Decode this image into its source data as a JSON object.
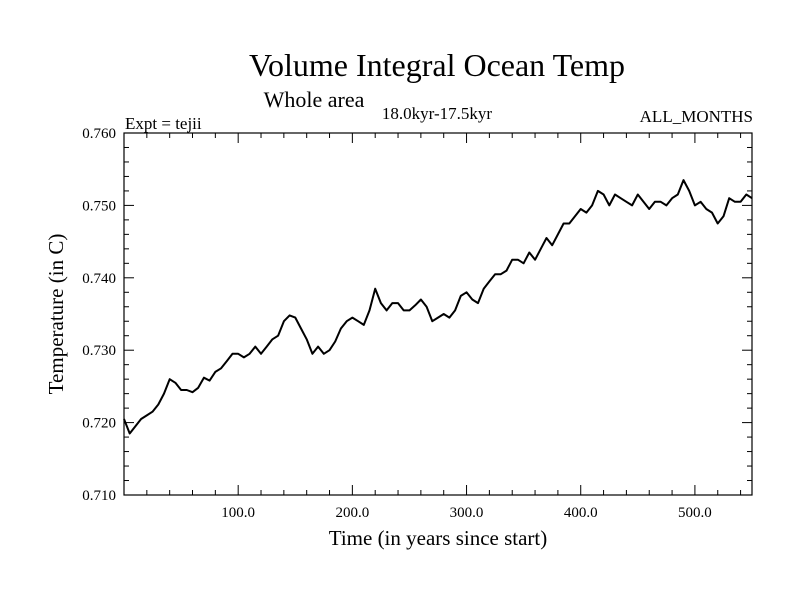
{
  "chart_data": {
    "type": "line",
    "title": "Volume Integral Ocean Temp",
    "subtitle": "Whole area",
    "period": "18.0kyr-17.5kyr",
    "left_label": "Expt = tejii",
    "right_label": "ALL_MONTHS",
    "xlabel": "Time (in years since start)",
    "ylabel": "Temperature (in C)",
    "xlim": [
      0,
      550
    ],
    "ylim": [
      0.71,
      0.76
    ],
    "x_ticks": [
      100,
      200,
      300,
      400,
      500
    ],
    "x_tick_labels": [
      "100.0",
      "200.0",
      "300.0",
      "400.0",
      "500.0"
    ],
    "y_ticks": [
      0.71,
      0.72,
      0.73,
      0.74,
      0.75,
      0.76
    ],
    "y_tick_labels": [
      "0.710",
      "0.720",
      "0.730",
      "0.740",
      "0.750",
      "0.760"
    ],
    "series": [
      {
        "name": "Volume integral ocean temperature",
        "color": "#000000",
        "x": [
          0,
          5,
          10,
          15,
          20,
          25,
          30,
          35,
          40,
          45,
          50,
          55,
          60,
          65,
          70,
          75,
          80,
          85,
          90,
          95,
          100,
          105,
          110,
          115,
          120,
          125,
          130,
          135,
          140,
          145,
          150,
          155,
          160,
          165,
          170,
          175,
          180,
          185,
          190,
          195,
          200,
          205,
          210,
          215,
          220,
          225,
          230,
          235,
          240,
          245,
          250,
          255,
          260,
          265,
          270,
          275,
          280,
          285,
          290,
          295,
          300,
          305,
          310,
          315,
          320,
          325,
          330,
          335,
          340,
          345,
          350,
          355,
          360,
          365,
          370,
          375,
          380,
          385,
          390,
          395,
          400,
          405,
          410,
          415,
          420,
          425,
          430,
          435,
          440,
          445,
          450,
          455,
          460,
          465,
          470,
          475,
          480,
          485,
          490,
          495,
          500,
          505,
          510,
          515,
          520,
          525,
          530,
          535,
          540,
          545,
          550
        ],
        "values": [
          0.7205,
          0.7185,
          0.7195,
          0.7205,
          0.721,
          0.7215,
          0.7225,
          0.724,
          0.726,
          0.7255,
          0.7245,
          0.7245,
          0.7242,
          0.7248,
          0.7262,
          0.7258,
          0.727,
          0.7275,
          0.7285,
          0.7295,
          0.7295,
          0.729,
          0.7295,
          0.7305,
          0.7295,
          0.7305,
          0.7315,
          0.732,
          0.734,
          0.7348,
          0.7345,
          0.733,
          0.7315,
          0.7295,
          0.7305,
          0.7295,
          0.73,
          0.7312,
          0.733,
          0.734,
          0.7345,
          0.734,
          0.7335,
          0.7355,
          0.7385,
          0.7365,
          0.7355,
          0.7365,
          0.7365,
          0.7355,
          0.7355,
          0.7362,
          0.737,
          0.736,
          0.734,
          0.7345,
          0.735,
          0.7345,
          0.7355,
          0.7375,
          0.738,
          0.737,
          0.7365,
          0.7385,
          0.7395,
          0.7405,
          0.7405,
          0.741,
          0.7425,
          0.7425,
          0.742,
          0.7435,
          0.7425,
          0.744,
          0.7455,
          0.7445,
          0.746,
          0.7475,
          0.7475,
          0.7485,
          0.7495,
          0.749,
          0.75,
          0.752,
          0.7515,
          0.75,
          0.7515,
          0.751,
          0.7505,
          0.75,
          0.7515,
          0.7505,
          0.7495,
          0.7505,
          0.7505,
          0.75,
          0.751,
          0.7515,
          0.7535,
          0.752,
          0.75,
          0.7505,
          0.7495,
          0.749,
          0.7475,
          0.7485,
          0.751,
          0.7505,
          0.7505,
          0.7515,
          0.751
        ]
      }
    ]
  }
}
